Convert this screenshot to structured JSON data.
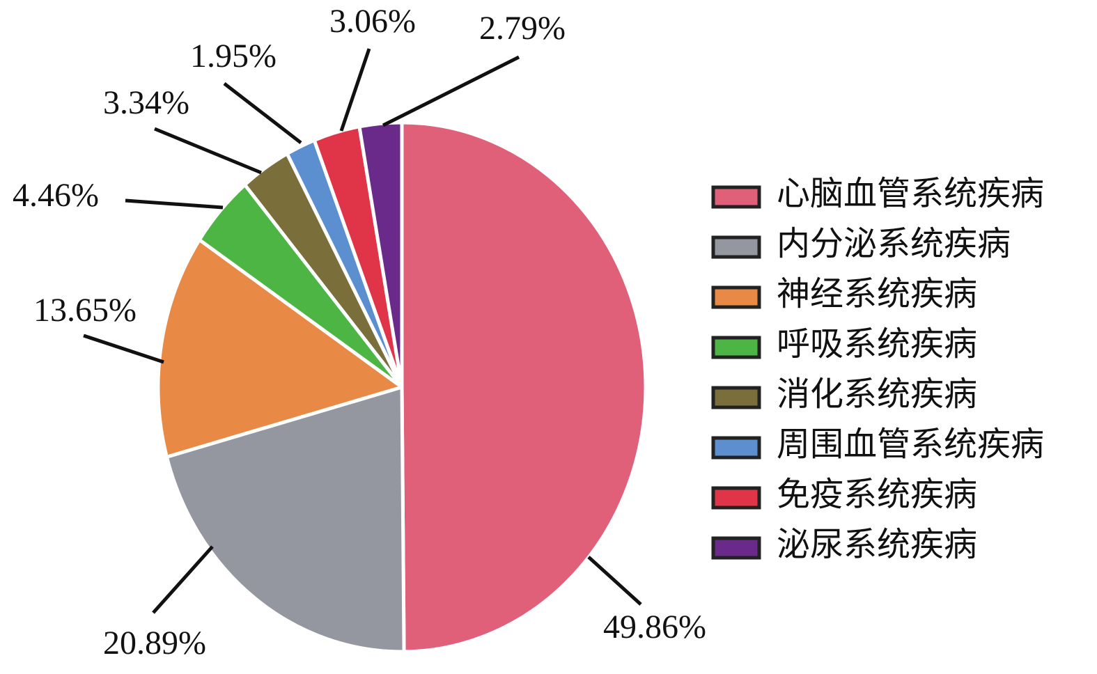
{
  "chart_data": {
    "type": "pie",
    "categories": [
      "心脑血管系统疾病",
      "内分泌系统疾病",
      "神经系统疾病",
      "呼吸系统疾病",
      "消化系统疾病",
      "周围血管系统疾病",
      "免疫系统疾病",
      "泌尿系统疾病"
    ],
    "values": [
      49.86,
      20.89,
      13.65,
      4.46,
      3.34,
      1.95,
      3.06,
      2.79
    ],
    "value_labels": [
      "49.86%",
      "20.89%",
      "13.65%",
      "4.46%",
      "3.34%",
      "1.95%",
      "3.06%",
      "2.79%"
    ],
    "colors": [
      "#e0607a",
      "#9597a0",
      "#e88a45",
      "#4cb544",
      "#7a6e3a",
      "#5b8fd0",
      "#e03448",
      "#6a2a8a"
    ],
    "legend": "right"
  }
}
